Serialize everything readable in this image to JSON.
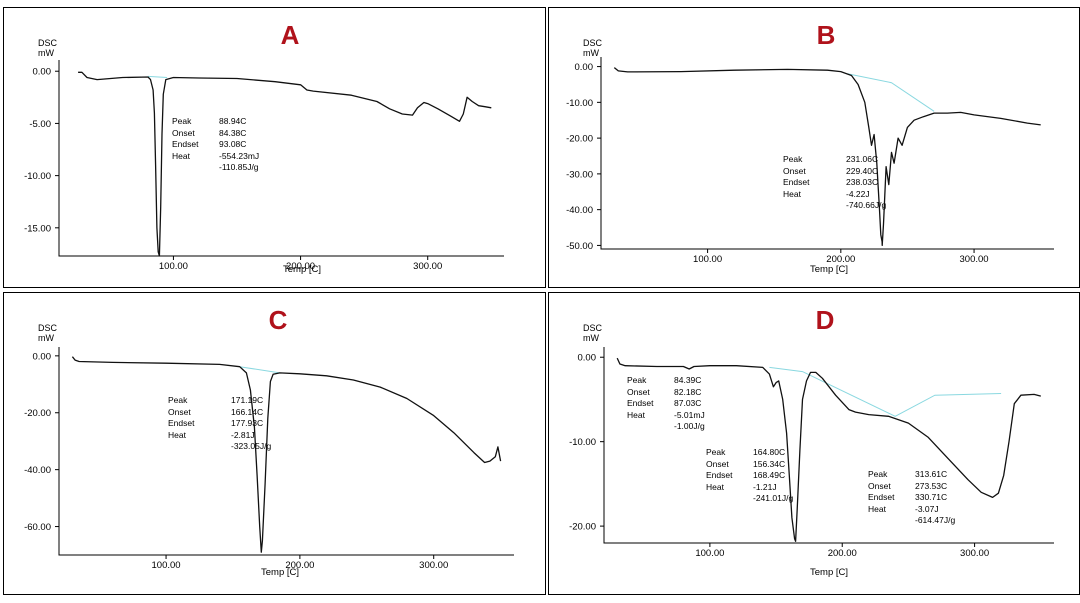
{
  "chart_data": [
    {
      "type": "line",
      "title": "A",
      "ylabel": "DSC\nmW",
      "xlabel": "Temp  [C]",
      "xlim": [
        10,
        360
      ],
      "ylim": [
        -17.7,
        0.5
      ],
      "yticks": [
        "0.00",
        "-5.00",
        "-10.00",
        "-15.00"
      ],
      "ytick_values": [
        0,
        -5,
        -10,
        -15
      ],
      "xticks": [
        "100.00",
        "200.00",
        "300.00"
      ],
      "xtick_values": [
        100,
        200,
        300
      ],
      "series": [
        {
          "values_x": [
            25,
            28,
            32,
            40,
            60,
            80,
            82,
            84,
            85,
            86,
            87,
            88,
            88.94,
            90,
            91,
            92,
            94,
            100,
            120,
            150,
            180,
            200,
            205,
            210,
            240,
            260,
            270,
            280,
            288,
            292,
            297,
            300,
            308,
            318,
            325,
            328,
            331,
            335,
            340,
            345,
            350
          ],
          "values_y": [
            -0.1,
            -0.1,
            -0.6,
            -0.8,
            -0.6,
            -0.55,
            -0.8,
            -1.8,
            -4,
            -9,
            -15,
            -17.3,
            -17.7,
            -13,
            -6,
            -2.2,
            -0.8,
            -0.6,
            -0.65,
            -0.7,
            -1.0,
            -1.3,
            -1.8,
            -1.9,
            -2.3,
            -2.9,
            -3.6,
            -4.1,
            -4.2,
            -3.5,
            -3.0,
            -3.1,
            -3.6,
            -4.3,
            -4.8,
            -4.1,
            -2.5,
            -2.9,
            -3.3,
            -3.4,
            -3.5
          ]
        }
      ],
      "baseline": {
        "x": [
          80,
          95
        ],
        "y": [
          -0.5,
          -0.6
        ]
      },
      "annotations": [
        {
          "labels": [
            "Peak",
            "Onset",
            "Endset",
            "Heat",
            ""
          ],
          "values": [
            "88.94C",
            "84.38C",
            "93.08C",
            "-554.23mJ",
            "-110.85J/g"
          ]
        }
      ]
    },
    {
      "type": "line",
      "title": "B",
      "ylabel": "DSC\nmW",
      "xlabel": "Temp  [C]",
      "xlim": [
        20,
        360
      ],
      "ylim": [
        -51,
        1
      ],
      "yticks": [
        "0.00",
        "-10.00",
        "-20.00",
        "-30.00",
        "-40.00",
        "-50.00"
      ],
      "ytick_values": [
        0,
        -10,
        -20,
        -30,
        -40,
        -50
      ],
      "xticks": [
        "100.00",
        "200.00",
        "300.00"
      ],
      "xtick_values": [
        100,
        200,
        300
      ],
      "series": [
        {
          "values_x": [
            30,
            33,
            40,
            80,
            120,
            160,
            190,
            200,
            208,
            213,
            218,
            221,
            223,
            225,
            227,
            229,
            230,
            231,
            231.06,
            232,
            233,
            234,
            236,
            238,
            240,
            243,
            246,
            250,
            255,
            262,
            270,
            280,
            290,
            300,
            320,
            340,
            350
          ],
          "values_y": [
            -0.3,
            -1.2,
            -1.5,
            -1.4,
            -1.0,
            -0.8,
            -1.0,
            -1.4,
            -2.5,
            -5,
            -10,
            -17,
            -22,
            -19,
            -27,
            -40,
            -47,
            -49,
            -50,
            -44,
            -36,
            -28,
            -33,
            -24,
            -27,
            -20,
            -22,
            -17,
            -15,
            -14,
            -13,
            -13,
            -12.8,
            -13.5,
            -14.5,
            -15.8,
            -16.3
          ]
        }
      ],
      "baseline": {
        "x": [
          205,
          238,
          270
        ],
        "y": [
          -2,
          -4.5,
          -12.5
        ]
      },
      "annotations": [
        {
          "labels": [
            "Peak",
            "Onset",
            "Endset",
            "Heat",
            ""
          ],
          "values": [
            "231.06C",
            "229.40C",
            "238.03C",
            "-4.22J",
            "-740.66J/g"
          ]
        }
      ]
    },
    {
      "type": "line",
      "title": "C",
      "ylabel": "DSC\nmW",
      "xlabel": "Temp  [C]",
      "xlim": [
        20,
        360
      ],
      "ylim": [
        -70,
        1
      ],
      "yticks": [
        "0.00",
        "-20.00",
        "-40.00",
        "-60.00"
      ],
      "ytick_values": [
        0,
        -20,
        -40,
        -60
      ],
      "xticks": [
        "100.00",
        "200.00",
        "300.00"
      ],
      "xtick_values": [
        100,
        200,
        300
      ],
      "series": [
        {
          "values_x": [
            30,
            32,
            35,
            60,
            100,
            140,
            155,
            160,
            163,
            166,
            168,
            170,
            171.19,
            172,
            174,
            176,
            178,
            180,
            185,
            200,
            220,
            240,
            260,
            280,
            300,
            315,
            330,
            338,
            342,
            346,
            348,
            350
          ],
          "values_y": [
            -0.3,
            -1.5,
            -2.0,
            -2.3,
            -2.6,
            -3.0,
            -3.8,
            -6.0,
            -12,
            -25,
            -42,
            -60,
            -69,
            -65,
            -45,
            -22,
            -9,
            -6.5,
            -6.0,
            -6.3,
            -7.0,
            -8.5,
            -11,
            -15,
            -21,
            -27,
            -34,
            -37.5,
            -37,
            -35.5,
            -32,
            -37
          ]
        }
      ],
      "baseline": {
        "x": [
          155,
          185
        ],
        "y": [
          -3.8,
          -6
        ]
      },
      "annotations": [
        {
          "labels": [
            "Peak",
            "Onset",
            "Endset",
            "Heat",
            ""
          ],
          "values": [
            "171.19C",
            "166.14C",
            "177.93C",
            "-2.81J",
            "-323.05J/g"
          ]
        }
      ]
    },
    {
      "type": "line",
      "title": "D",
      "ylabel": "DSC\nmW",
      "xlabel": "Temp  [C]",
      "xlim": [
        20,
        360
      ],
      "ylim": [
        -22,
        0.5
      ],
      "yticks": [
        "0.00",
        "-10.00",
        "-20.00"
      ],
      "ytick_values": [
        0,
        -10,
        -20
      ],
      "xticks": [
        "100.00",
        "200.00",
        "300.00"
      ],
      "xtick_values": [
        100,
        200,
        300
      ],
      "series": [
        {
          "values_x": [
            30,
            32,
            36,
            60,
            80,
            84.39,
            88,
            100,
            120,
            140,
            145,
            148,
            150,
            152,
            155,
            158,
            160,
            162,
            164,
            164.8,
            166,
            168,
            170,
            173,
            176,
            180,
            185,
            195,
            205,
            210,
            220,
            235,
            250,
            265,
            280,
            295,
            305,
            313.61,
            318,
            322,
            326,
            330,
            335,
            345,
            350
          ],
          "values_y": [
            -0.1,
            -0.8,
            -1.0,
            -1.1,
            -1.1,
            -1.4,
            -1.1,
            -1.0,
            -1.0,
            -1.2,
            -2.0,
            -3.5,
            -3.0,
            -2.8,
            -5.0,
            -9.0,
            -14,
            -19,
            -21.5,
            -21.8,
            -18,
            -11,
            -5,
            -2.8,
            -1.8,
            -1.8,
            -2.5,
            -4.5,
            -6.2,
            -6.5,
            -6.8,
            -7.0,
            -7.8,
            -9.5,
            -12,
            -14.5,
            -16,
            -16.6,
            -16.1,
            -14,
            -10,
            -5.5,
            -4.5,
            -4.4,
            -4.6
          ]
        }
      ],
      "baseline": {
        "x": [
          145,
          170,
          240,
          270,
          320
        ],
        "y": [
          -1.2,
          -1.7,
          -7.0,
          -4.5,
          -4.3
        ]
      },
      "annotations": [
        {
          "labels": [
            "Peak",
            "Onset",
            "Endset",
            "Heat",
            ""
          ],
          "values": [
            "84.39C",
            "82.18C",
            "87.03C",
            "-5.01mJ",
            "-1.00J/g"
          ]
        },
        {
          "labels": [
            "Peak",
            "Onset",
            "Endset",
            "Heat",
            ""
          ],
          "values": [
            "164.80C",
            "156.34C",
            "168.49C",
            "-1.21J",
            "-241.01J/g"
          ]
        },
        {
          "labels": [
            "Peak",
            "Onset",
            "Endset",
            "Heat",
            ""
          ],
          "values": [
            "313.61C",
            "273.53C",
            "330.71C",
            "-3.07J",
            "-614.47J/g"
          ]
        }
      ]
    }
  ],
  "colors": {
    "curve": "#111111",
    "baseline": "#8ad8e0",
    "letter": "#b0121b",
    "axis": "#000000"
  }
}
